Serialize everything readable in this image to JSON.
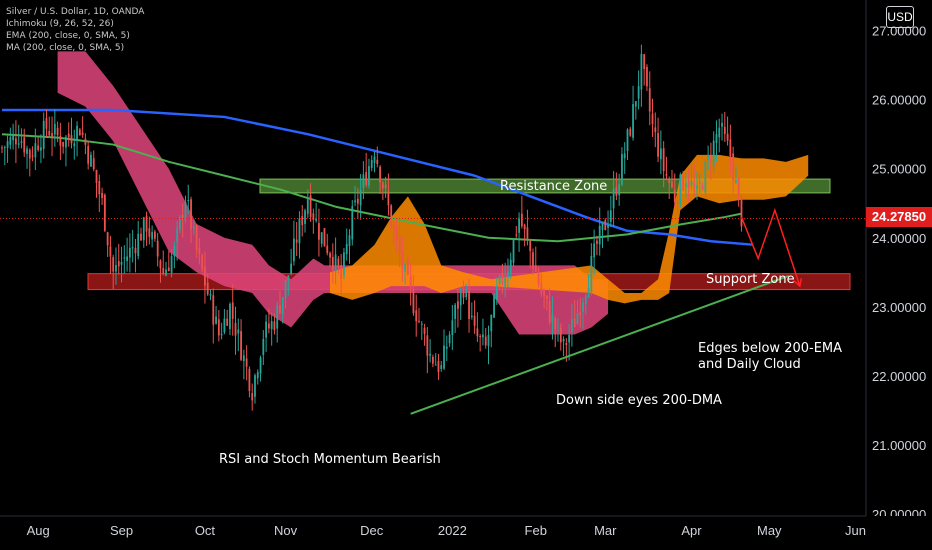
{
  "legend": {
    "symbol": "Silver / U.S. Dollar, 1D, OANDA",
    "ichimoku": "Ichimoku (9, 26, 52, 26)",
    "ema": "EMA (200, close, 0, SMA, 5)",
    "ma": "MA (200, close, 0, SMA, 5)"
  },
  "currency": "USD",
  "last_price_label": "24.27850",
  "colors": {
    "background": "#000000",
    "up_candle": "#26a69a",
    "down_candle": "#ef5350",
    "ema_line": "#2962ff",
    "ma_line": "#4caf50",
    "cloud_bull": "#ff8c00",
    "cloud_bear": "#e0457b",
    "resistance_zone": "#5a9a3a",
    "support_zone": "#b71c1c",
    "last_price": "#e01e1e",
    "trendline": "#4caf50",
    "projection_arrow": "#ff2020"
  },
  "chart_data": {
    "type": "candlestick",
    "ylim": [
      20,
      27.4
    ],
    "y_ticks": [
      "27.00000",
      "26.00000",
      "25.00000",
      "24.00000",
      "23.00000",
      "22.00000",
      "21.00000",
      "20.00000"
    ],
    "x_ticks": [
      "Aug",
      "Sep",
      "Oct",
      "Nov",
      "Dec",
      "2022",
      "Feb",
      "Mar",
      "Apr",
      "May",
      "Jun"
    ],
    "last_price": 24.2785,
    "resistance_zone": [
      24.65,
      24.85
    ],
    "support_zone": [
      23.25,
      23.48
    ],
    "annotations": [
      "Resistance Zone",
      "Support Zone",
      "Edges below 200-EMA\nand Daily Cloud",
      "Down side eyes 200-DMA",
      "RSI and Stoch Momentum Bearish"
    ],
    "price_path": [
      [
        0,
        25.3
      ],
      [
        6,
        25.5
      ],
      [
        10,
        25.2
      ],
      [
        16,
        25.6
      ],
      [
        22,
        25.4
      ],
      [
        28,
        25.6
      ],
      [
        32,
        25.1
      ],
      [
        36,
        24.5
      ],
      [
        40,
        23.5
      ],
      [
        46,
        23.8
      ],
      [
        52,
        24.2
      ],
      [
        58,
        23.5
      ],
      [
        62,
        23.8
      ],
      [
        66,
        24.6
      ],
      [
        70,
        23.8
      ],
      [
        74,
        23.2
      ],
      [
        78,
        22.6
      ],
      [
        82,
        23.0
      ],
      [
        86,
        22.4
      ],
      [
        90,
        21.8
      ],
      [
        94,
        22.6
      ],
      [
        98,
        22.8
      ],
      [
        102,
        23.3
      ],
      [
        106,
        24.0
      ],
      [
        110,
        24.6
      ],
      [
        114,
        24.1
      ],
      [
        118,
        23.8
      ],
      [
        122,
        23.4
      ],
      [
        126,
        24.3
      ],
      [
        130,
        24.8
      ],
      [
        134,
        25.3
      ],
      [
        138,
        24.6
      ],
      [
        142,
        23.9
      ],
      [
        146,
        23.3
      ],
      [
        150,
        22.8
      ],
      [
        154,
        22.3
      ],
      [
        158,
        22.1
      ],
      [
        162,
        22.8
      ],
      [
        166,
        23.3
      ],
      [
        170,
        22.6
      ],
      [
        174,
        22.4
      ],
      [
        178,
        23.2
      ],
      [
        182,
        23.6
      ],
      [
        186,
        24.3
      ],
      [
        190,
        23.8
      ],
      [
        194,
        23.2
      ],
      [
        198,
        22.8
      ],
      [
        202,
        22.4
      ],
      [
        206,
        22.8
      ],
      [
        210,
        23.3
      ],
      [
        214,
        23.9
      ],
      [
        218,
        24.3
      ],
      [
        222,
        24.9
      ],
      [
        226,
        25.6
      ],
      [
        230,
        26.5
      ],
      [
        234,
        25.6
      ],
      [
        238,
        25.0
      ],
      [
        242,
        24.6
      ],
      [
        246,
        24.9
      ],
      [
        250,
        24.6
      ],
      [
        254,
        25.1
      ],
      [
        258,
        25.6
      ],
      [
        262,
        25.2
      ],
      [
        266,
        24.3
      ]
    ],
    "ema_200": [
      [
        0,
        25.85
      ],
      [
        40,
        25.85
      ],
      [
        80,
        25.75
      ],
      [
        110,
        25.5
      ],
      [
        140,
        25.2
      ],
      [
        170,
        24.9
      ],
      [
        190,
        24.6
      ],
      [
        210,
        24.3
      ],
      [
        225,
        24.1
      ],
      [
        240,
        24.05
      ],
      [
        255,
        23.95
      ],
      [
        270,
        23.9
      ]
    ],
    "ma_200": [
      [
        0,
        25.5
      ],
      [
        20,
        25.45
      ],
      [
        40,
        25.35
      ],
      [
        60,
        25.1
      ],
      [
        80,
        24.9
      ],
      [
        100,
        24.7
      ],
      [
        120,
        24.45
      ],
      [
        150,
        24.2
      ],
      [
        175,
        24.0
      ],
      [
        200,
        23.95
      ],
      [
        225,
        24.05
      ],
      [
        245,
        24.2
      ],
      [
        260,
        24.3
      ],
      [
        266,
        24.35
      ]
    ],
    "cloud_bear": [
      [
        20,
        26.7,
        26.1
      ],
      [
        30,
        26.7,
        25.9
      ],
      [
        40,
        26.2,
        25.4
      ],
      [
        50,
        25.6,
        24.6
      ],
      [
        60,
        25.0,
        23.8
      ],
      [
        70,
        24.2,
        23.5
      ],
      [
        80,
        24.0,
        23.3
      ],
      [
        90,
        23.9,
        23.2
      ],
      [
        96,
        23.6,
        22.9
      ],
      [
        104,
        23.4,
        22.7
      ],
      [
        112,
        23.7,
        23.1
      ],
      [
        116,
        23.6,
        23.2
      ],
      [
        176,
        23.6,
        23.2
      ],
      [
        186,
        23.6,
        22.6
      ],
      [
        196,
        23.6,
        22.6
      ],
      [
        206,
        23.6,
        22.6
      ],
      [
        212,
        23.4,
        22.7
      ],
      [
        218,
        23.4,
        22.9
      ]
    ],
    "cloud_bull": [
      [
        118,
        23.5,
        23.2
      ],
      [
        126,
        23.6,
        23.1
      ],
      [
        134,
        23.9,
        23.2
      ],
      [
        140,
        24.3,
        23.3
      ],
      [
        146,
        24.6,
        23.3
      ],
      [
        152,
        24.2,
        23.3
      ],
      [
        158,
        23.6,
        23.2
      ],
      [
        166,
        23.5,
        23.3
      ],
      [
        176,
        23.4,
        23.3
      ],
      [
        212,
        23.6,
        23.2
      ],
      [
        218,
        23.4,
        23.1
      ],
      [
        224,
        23.2,
        23.05
      ],
      [
        230,
        23.2,
        23.1
      ],
      [
        236,
        23.4,
        23.1
      ],
      [
        240,
        24.1,
        23.2
      ],
      [
        244,
        24.9,
        24.4
      ],
      [
        250,
        25.2,
        24.6
      ],
      [
        258,
        25.2,
        24.5
      ],
      [
        266,
        25.15,
        24.55
      ],
      [
        274,
        25.15,
        24.55
      ],
      [
        282,
        25.1,
        24.6
      ],
      [
        290,
        25.2,
        24.9
      ]
    ],
    "trendline": [
      [
        147,
        21.45
      ],
      [
        283,
        23.45
      ]
    ],
    "projection": [
      [
        266,
        24.3
      ],
      [
        272,
        23.7
      ],
      [
        278,
        24.4
      ],
      [
        287,
        23.3
      ]
    ]
  }
}
